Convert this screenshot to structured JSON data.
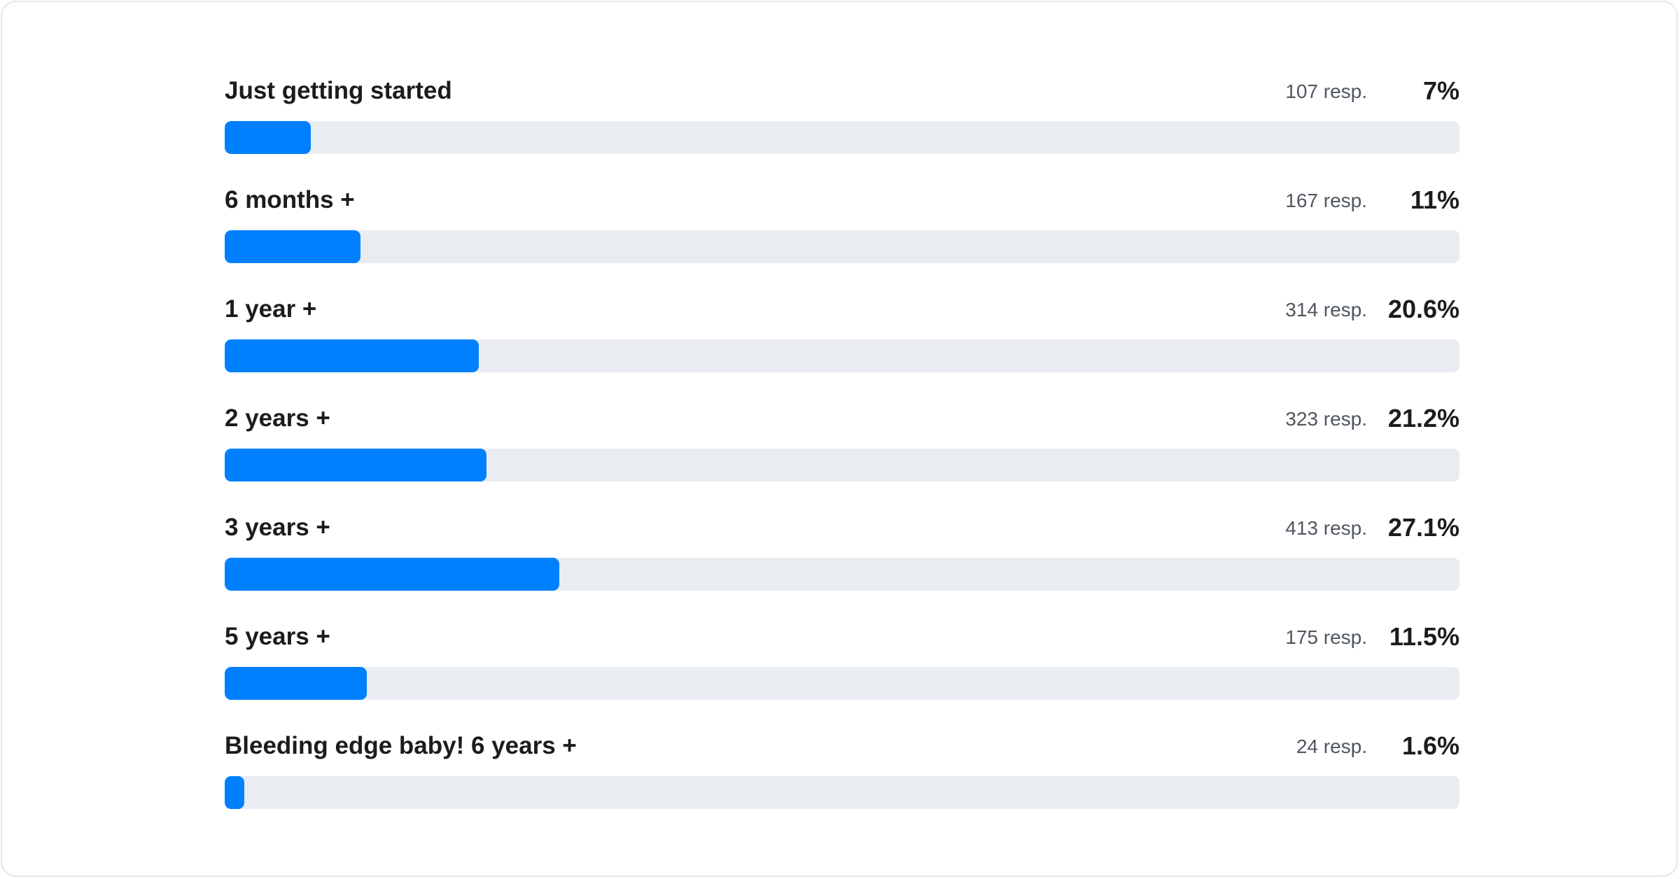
{
  "chart_data": {
    "type": "bar",
    "orientation": "horizontal",
    "categories": [
      "Just getting started",
      "6 months +",
      "1 year +",
      "2 years +",
      "3 years +",
      "5 years +",
      "Bleeding edge baby! 6 years +"
    ],
    "responses": [
      "107 resp.",
      "167 resp.",
      "314 resp.",
      "323 resp.",
      "413 resp.",
      "175 resp.",
      "24 resp."
    ],
    "percent_labels": [
      "7%",
      "11%",
      "20.6%",
      "21.2%",
      "27.1%",
      "11.5%",
      "1.6%"
    ],
    "values": [
      7,
      11,
      20.6,
      21.2,
      27.1,
      11.5,
      1.6
    ],
    "xlim": [
      0,
      100
    ],
    "grid": false,
    "colors": {
      "fill": "#0080ff",
      "track": "#e9ecf1"
    }
  }
}
